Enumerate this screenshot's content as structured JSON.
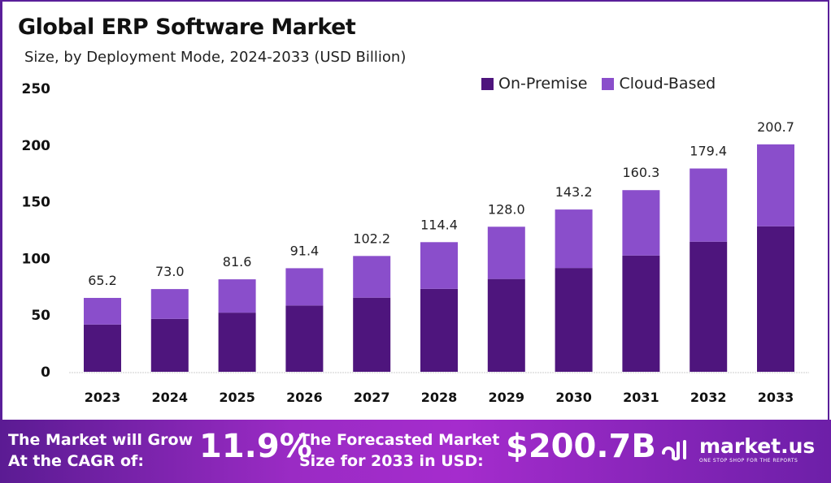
{
  "chart_data": {
    "type": "bar",
    "stacked": true,
    "title": "Global ERP Software Market",
    "subtitle": "Size, by Deployment Mode, 2024-2033 (USD Billion)",
    "categories": [
      "2023",
      "2024",
      "2025",
      "2026",
      "2027",
      "2028",
      "2029",
      "2030",
      "2031",
      "2032",
      "2033"
    ],
    "series": [
      {
        "name": "On-Premise",
        "color": "#4e157d",
        "values": [
          41.7,
          46.7,
          52.2,
          58.5,
          65.4,
          73.2,
          81.9,
          91.6,
          102.6,
          114.8,
          128.4
        ]
      },
      {
        "name": "Cloud-Based",
        "color": "#8a4ecb",
        "values": [
          23.5,
          26.3,
          29.4,
          32.9,
          36.8,
          41.2,
          46.1,
          51.6,
          57.7,
          64.6,
          72.3
        ]
      }
    ],
    "totals": [
      "65.2",
      "73.0",
      "81.6",
      "91.4",
      "102.2",
      "114.4",
      "128.0",
      "143.2",
      "160.3",
      "179.4",
      "200.7"
    ],
    "yticks": [
      "0",
      "50",
      "100",
      "150",
      "200",
      "250"
    ],
    "ylim": [
      0,
      250
    ],
    "grid": false,
    "legend": "top-right"
  },
  "banner": {
    "cagr_label_1": "The Market will Grow",
    "cagr_label_2": "At the CAGR of:",
    "cagr_value": "11.9%",
    "forecast_label_1": "The Forecasted Market",
    "forecast_label_2": "Size for 2033 in USD:",
    "forecast_value": "$200.7B",
    "brand": "market.us",
    "tagline": "ONE STOP SHOP FOR THE REPORTS"
  }
}
